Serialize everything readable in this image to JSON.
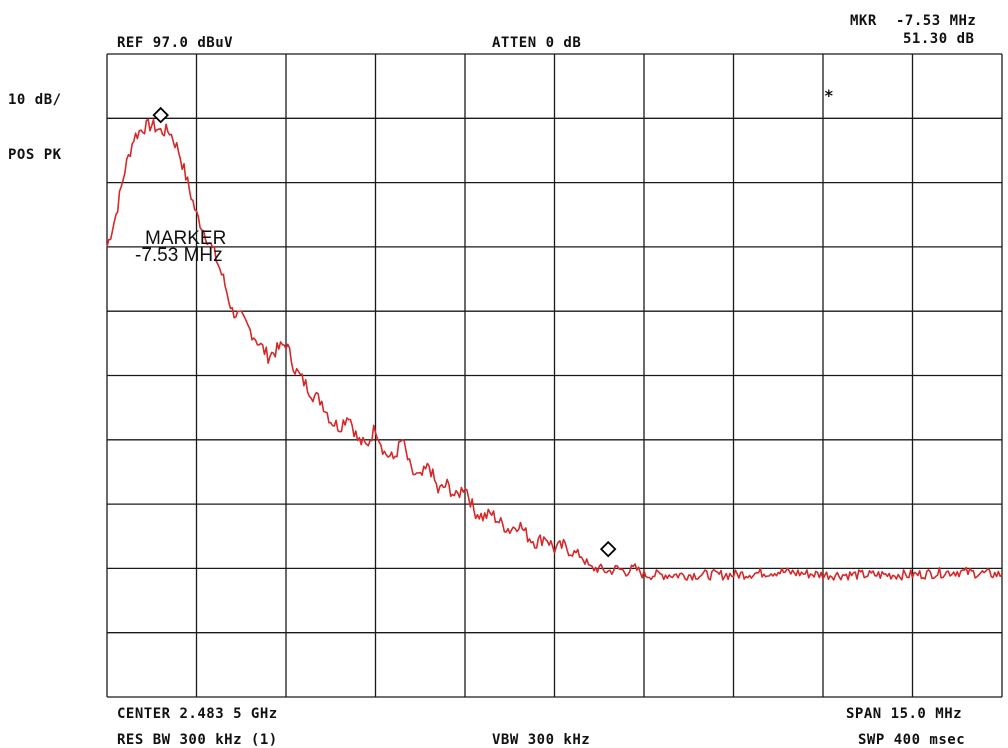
{
  "header": {
    "ref_level": "REF  97.0 dBuV",
    "attenuation": "ATTEN 0 dB",
    "marker_label": "MKR",
    "marker_freq": "-7.53 MHz",
    "marker_level": "51.30 dB"
  },
  "left_panel": {
    "scale": "10 dB/",
    "detector": "POS PK"
  },
  "footer": {
    "center": "CENTER 2.483 5 GHz",
    "span": "SPAN 15.0 MHz",
    "res_bw": "RES BW 300 kHz (1)",
    "vbw": "VBW 300 kHz",
    "sweep": "SWP 400 msec"
  },
  "annotations": {
    "marker_note_line1": "MARKER",
    "marker_note_line2": "-7.53  MHz",
    "asterisk": "*"
  },
  "colors": {
    "trace": "#d42a2a",
    "grid": "#1a1a1a",
    "text": "#111111"
  },
  "chart_data": {
    "type": "line",
    "title": "",
    "xlabel": "",
    "ylabel": "",
    "xlim": [
      0,
      10
    ],
    "ylim": [
      0,
      10
    ],
    "x_units": "divisions",
    "y_units": "divisions",
    "grid": true,
    "series": [
      {
        "x": [
          0,
          0.1,
          0.2,
          0.3,
          0.4,
          0.5,
          0.6,
          0.7,
          0.8,
          0.9,
          1.0,
          1.1,
          1.2,
          1.3,
          1.4,
          1.5,
          1.6,
          1.7,
          1.8,
          1.9,
          2.0,
          2.1,
          2.2,
          2.3,
          2.4,
          2.5,
          2.6,
          2.7,
          2.8,
          2.9,
          3.0,
          3.1,
          3.2,
          3.3,
          3.4,
          3.5,
          3.6,
          3.7,
          3.8,
          3.9,
          4.0,
          4.1,
          4.2,
          4.3,
          4.4,
          4.5,
          4.6,
          4.7,
          4.8,
          4.9,
          5.0,
          5.1,
          5.2,
          5.3,
          5.4,
          5.5,
          5.6,
          5.7,
          5.8,
          5.9,
          6.0,
          6.5,
          7.0,
          7.5,
          8.0,
          8.5,
          9.0,
          9.5,
          10.0
        ],
        "y": [
          7.0,
          7.5,
          8.2,
          8.7,
          8.85,
          8.9,
          8.8,
          8.8,
          8.5,
          8.0,
          7.5,
          7.2,
          6.9,
          6.5,
          6.0,
          5.9,
          5.7,
          5.5,
          5.3,
          5.4,
          5.5,
          5.1,
          4.9,
          4.7,
          4.6,
          4.3,
          4.2,
          4.4,
          4.0,
          3.9,
          4.2,
          3.8,
          3.7,
          4.0,
          3.5,
          3.4,
          3.6,
          3.2,
          3.3,
          3.1,
          3.3,
          2.9,
          2.8,
          2.85,
          2.7,
          2.6,
          2.7,
          2.5,
          2.4,
          2.5,
          2.3,
          2.35,
          2.25,
          2.2,
          2.0,
          2.0,
          1.95,
          2.0,
          1.95,
          2.0,
          1.9,
          1.9,
          1.9,
          1.95,
          1.9,
          1.9,
          1.9,
          1.95,
          1.9
        ]
      }
    ],
    "markers": [
      {
        "x": 0.6,
        "y": 9.05
      },
      {
        "x": 5.6,
        "y": 2.3
      }
    ]
  }
}
